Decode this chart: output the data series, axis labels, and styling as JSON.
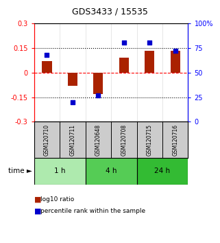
{
  "title": "GDS3433 / 15535",
  "samples": [
    "GSM120710",
    "GSM120711",
    "GSM120648",
    "GSM120708",
    "GSM120715",
    "GSM120716"
  ],
  "log10_ratio": [
    0.07,
    -0.08,
    -0.13,
    0.09,
    0.13,
    0.13
  ],
  "percentile_rank": [
    68,
    20,
    27,
    80,
    80,
    72
  ],
  "bar_color": "#aa2200",
  "dot_color": "#0000cc",
  "ylim_left": [
    -0.3,
    0.3
  ],
  "ylim_right": [
    0,
    100
  ],
  "yticks_left": [
    -0.3,
    -0.15,
    0,
    0.15,
    0.3
  ],
  "yticks_right": [
    0,
    25,
    50,
    75,
    100
  ],
  "hlines_black": [
    0.15,
    -0.15
  ],
  "hline_red": 0.0,
  "groups": [
    {
      "label": "1 h",
      "indices": [
        0,
        1
      ],
      "color": "#aeeaae"
    },
    {
      "label": "4 h",
      "indices": [
        2,
        3
      ],
      "color": "#55cc55"
    },
    {
      "label": "24 h",
      "indices": [
        4,
        5
      ],
      "color": "#33bb33"
    }
  ],
  "legend_red": "log10 ratio",
  "legend_blue": "percentile rank within the sample",
  "bar_width": 0.38,
  "dot_size": 18,
  "bg_plot": "#ffffff",
  "bg_label": "#cccccc"
}
